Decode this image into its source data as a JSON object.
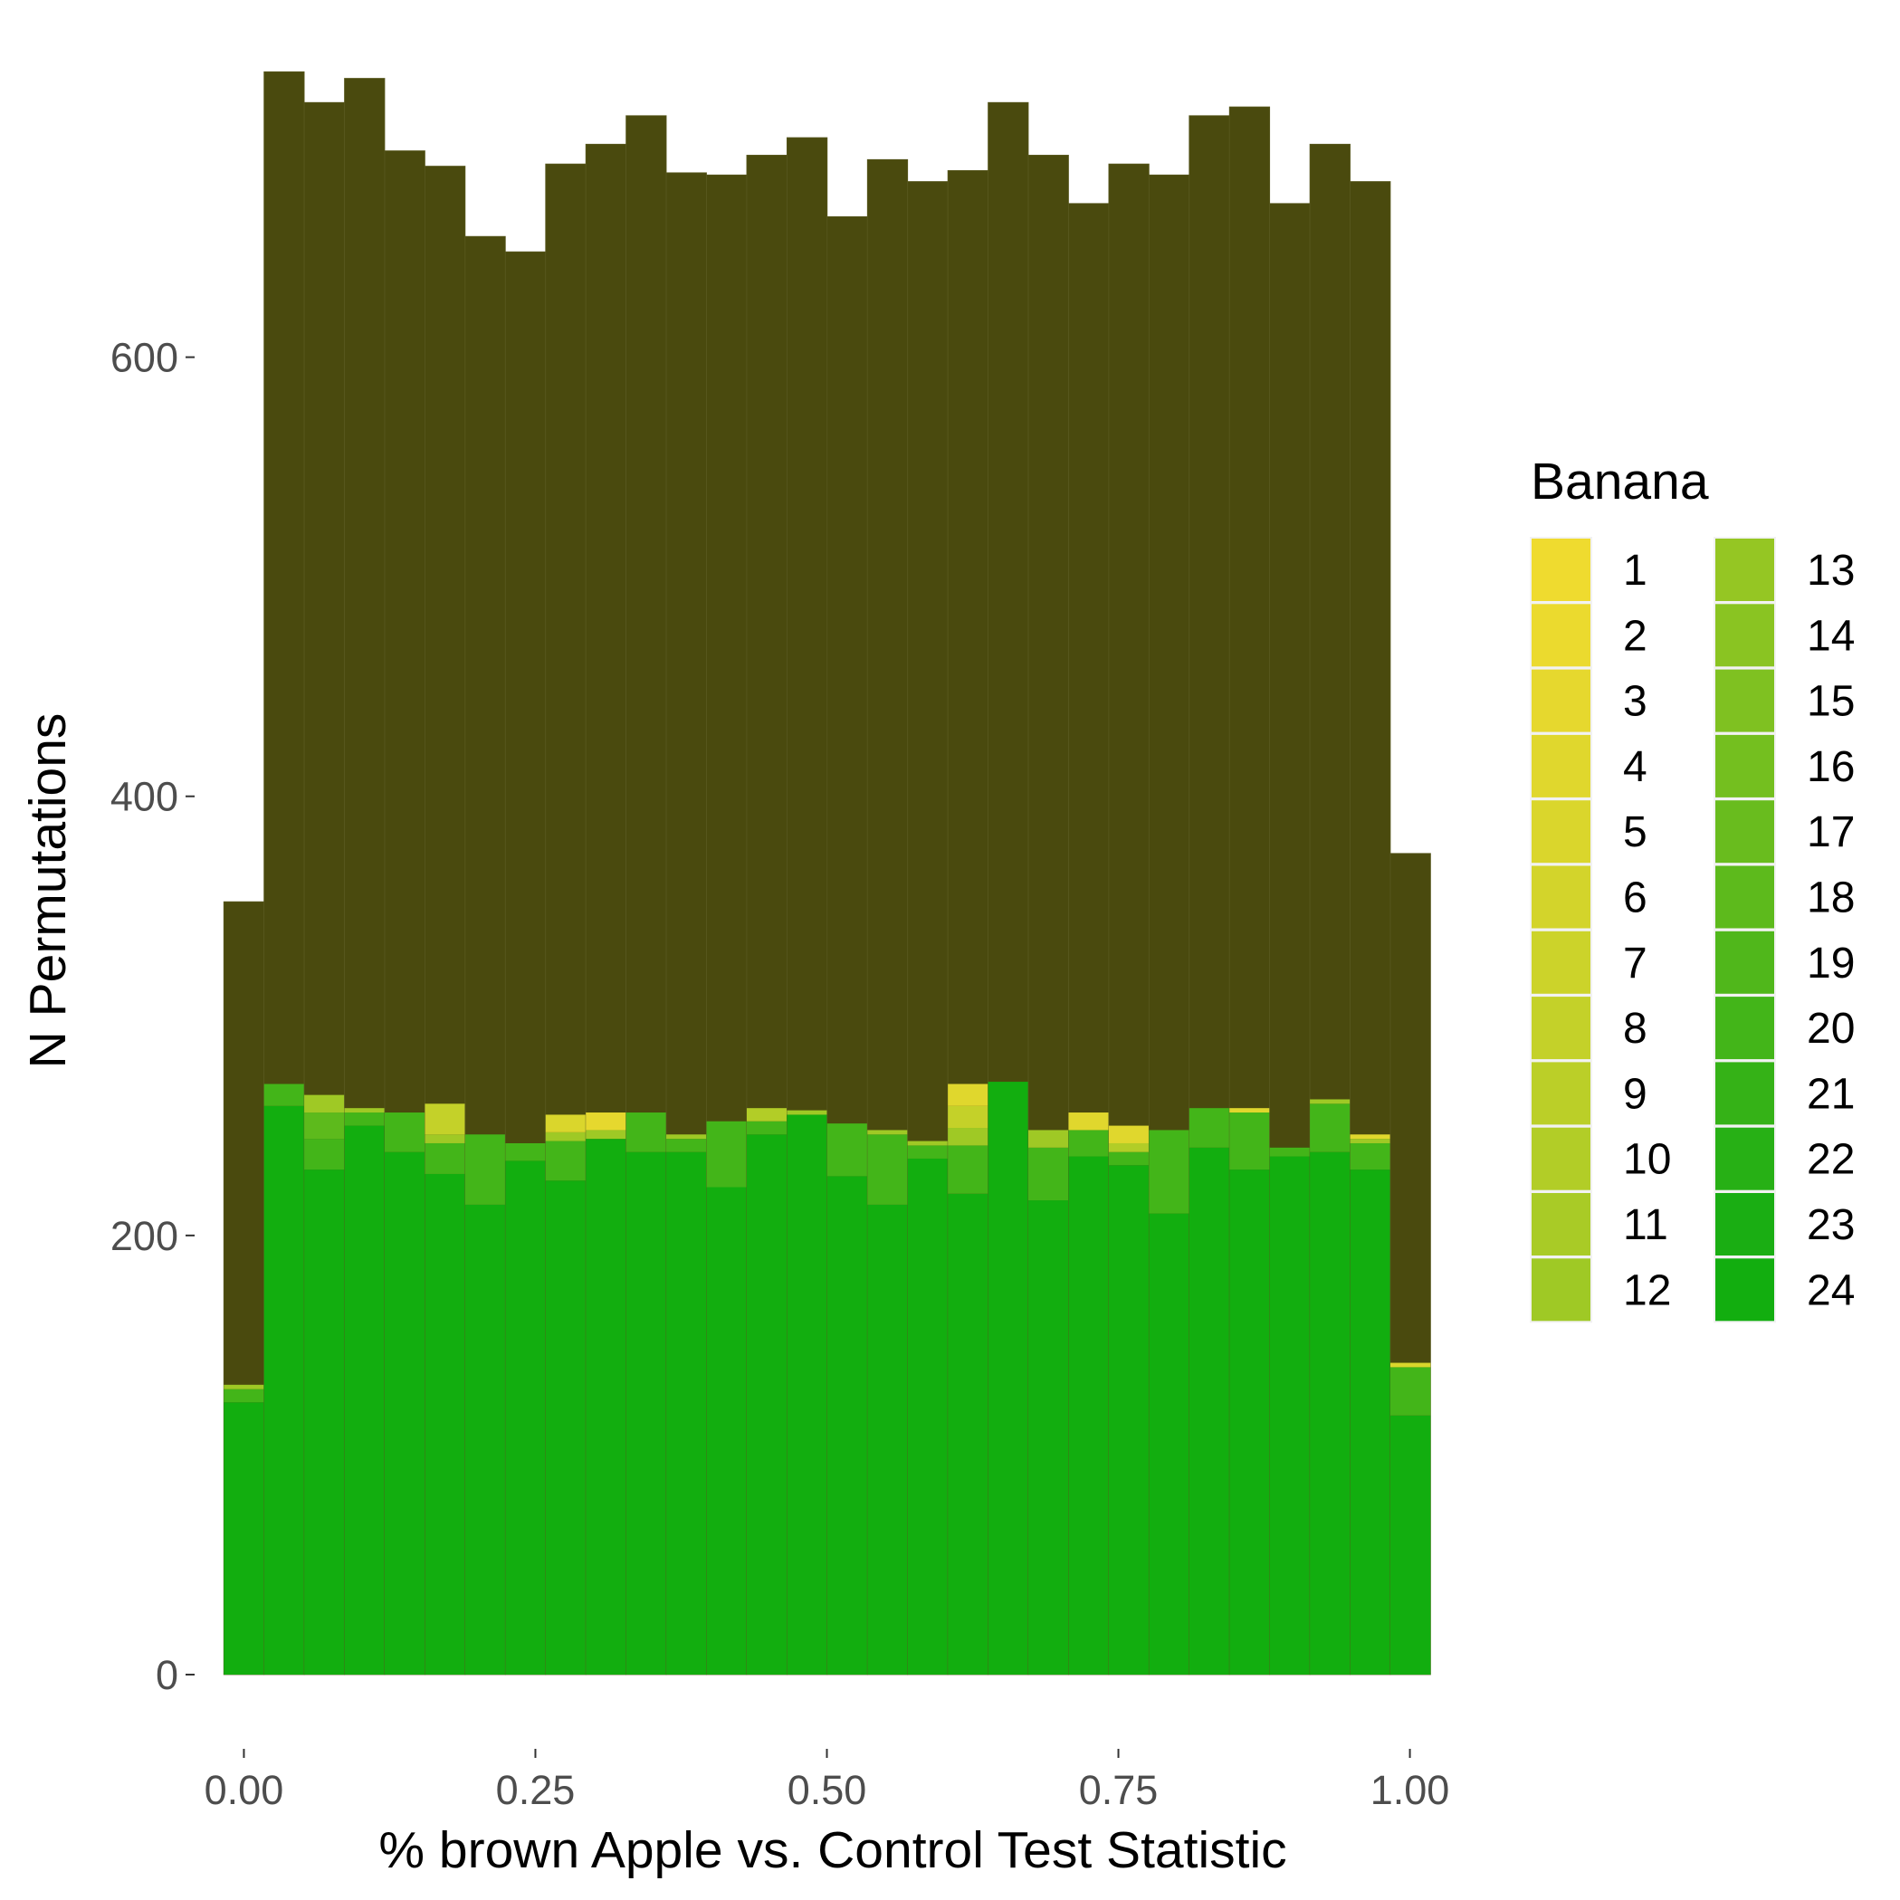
{
  "chart_data": {
    "type": "bar",
    "stacked": true,
    "xlabel": "% brown Apple vs. Control Test Statistic",
    "ylabel": "N Permutations",
    "xlim": [
      -0.0345,
      1.0345
    ],
    "ylim": [
      0,
      740
    ],
    "xticks": [
      "0.00",
      "0.25",
      "0.50",
      "0.75",
      "1.00"
    ],
    "yticks": [
      "0",
      "200",
      "400",
      "600"
    ],
    "grid": false,
    "bin_width": 0.0345,
    "bin_start": -0.01725,
    "totals": [
      352,
      730,
      716,
      727,
      694,
      687,
      655,
      648,
      688,
      697,
      710,
      684,
      683,
      692,
      700,
      664,
      690,
      680,
      685,
      716,
      692,
      670,
      688,
      683,
      710,
      714,
      670,
      697,
      680,
      374
    ],
    "background_color": "#4a4a0e",
    "legend": {
      "title": "Banana",
      "position": "right",
      "columns": 2,
      "entries": [
        {
          "label": "1",
          "color": "#efdb2f"
        },
        {
          "label": "2",
          "color": "#ebda2e"
        },
        {
          "label": "3",
          "color": "#e6d82e"
        },
        {
          "label": "4",
          "color": "#e0d72d"
        },
        {
          "label": "5",
          "color": "#dad62c"
        },
        {
          "label": "6",
          "color": "#d3d42b"
        },
        {
          "label": "7",
          "color": "#ccd32a"
        },
        {
          "label": "8",
          "color": "#c4d129"
        },
        {
          "label": "9",
          "color": "#bbcf28"
        },
        {
          "label": "10",
          "color": "#b2cd27"
        },
        {
          "label": "11",
          "color": "#a9cb26"
        },
        {
          "label": "12",
          "color": "#9fc925"
        },
        {
          "label": "13",
          "color": "#95c623"
        },
        {
          "label": "14",
          "color": "#8ac422"
        },
        {
          "label": "15",
          "color": "#7fc121"
        },
        {
          "label": "16",
          "color": "#74bf1f"
        },
        {
          "label": "17",
          "color": "#69bc1e"
        },
        {
          "label": "18",
          "color": "#5dba1c"
        },
        {
          "label": "19",
          "color": "#50b71b"
        },
        {
          "label": "20",
          "color": "#43b519"
        },
        {
          "label": "21",
          "color": "#35b217"
        },
        {
          "label": "22",
          "color": "#27b015"
        },
        {
          "label": "23",
          "color": "#1aae13"
        },
        {
          "label": "24",
          "color": "#12ae0f"
        }
      ]
    },
    "segments": [
      [
        [
          24,
          124
        ],
        [
          20,
          6
        ],
        [
          12,
          2
        ]
      ],
      [
        [
          24,
          259
        ],
        [
          20,
          10
        ]
      ],
      [
        [
          24,
          230
        ],
        [
          20,
          14
        ],
        [
          18,
          12
        ],
        [
          12,
          8
        ]
      ],
      [
        [
          24,
          250
        ],
        [
          20,
          6
        ],
        [
          12,
          2
        ]
      ],
      [
        [
          24,
          238
        ],
        [
          20,
          18
        ]
      ],
      [
        [
          24,
          228
        ],
        [
          20,
          14
        ],
        [
          12,
          4
        ],
        [
          8,
          14
        ]
      ],
      [
        [
          24,
          214
        ],
        [
          20,
          32
        ]
      ],
      [
        [
          24,
          234
        ],
        [
          20,
          8
        ]
      ],
      [
        [
          24,
          225
        ],
        [
          20,
          18
        ],
        [
          12,
          4
        ],
        [
          5,
          8
        ]
      ],
      [
        [
          24,
          244
        ],
        [
          12,
          4
        ],
        [
          3,
          8
        ]
      ],
      [
        [
          24,
          238
        ],
        [
          20,
          18
        ]
      ],
      [
        [
          24,
          238
        ],
        [
          20,
          6
        ],
        [
          12,
          2
        ]
      ],
      [
        [
          24,
          222
        ],
        [
          20,
          30
        ]
      ],
      [
        [
          24,
          246
        ],
        [
          20,
          6
        ],
        [
          10,
          6
        ]
      ],
      [
        [
          24,
          255
        ],
        [
          12,
          2
        ]
      ],
      [
        [
          24,
          227
        ],
        [
          20,
          24
        ]
      ],
      [
        [
          24,
          214
        ],
        [
          20,
          32
        ],
        [
          12,
          2
        ]
      ],
      [
        [
          24,
          235
        ],
        [
          20,
          6
        ],
        [
          12,
          2
        ]
      ],
      [
        [
          24,
          219
        ],
        [
          20,
          22
        ],
        [
          12,
          8
        ],
        [
          8,
          10
        ],
        [
          4,
          10
        ]
      ],
      [
        [
          24,
          270
        ]
      ],
      [
        [
          24,
          216
        ],
        [
          20,
          24
        ],
        [
          12,
          8
        ]
      ],
      [
        [
          24,
          236
        ],
        [
          20,
          12
        ],
        [
          4,
          8
        ]
      ],
      [
        [
          24,
          232
        ],
        [
          20,
          6
        ],
        [
          10,
          4
        ],
        [
          4,
          8
        ]
      ],
      [
        [
          24,
          210
        ],
        [
          20,
          38
        ]
      ],
      [
        [
          24,
          240
        ],
        [
          20,
          18
        ]
      ],
      [
        [
          24,
          230
        ],
        [
          20,
          26
        ],
        [
          4,
          2
        ]
      ],
      [
        [
          24,
          236
        ],
        [
          20,
          4
        ]
      ],
      [
        [
          24,
          238
        ],
        [
          20,
          22
        ],
        [
          12,
          2
        ]
      ],
      [
        [
          24,
          230
        ],
        [
          20,
          12
        ],
        [
          12,
          2
        ],
        [
          4,
          2
        ]
      ],
      [
        [
          24,
          118
        ],
        [
          20,
          22
        ],
        [
          5,
          2
        ]
      ]
    ]
  }
}
